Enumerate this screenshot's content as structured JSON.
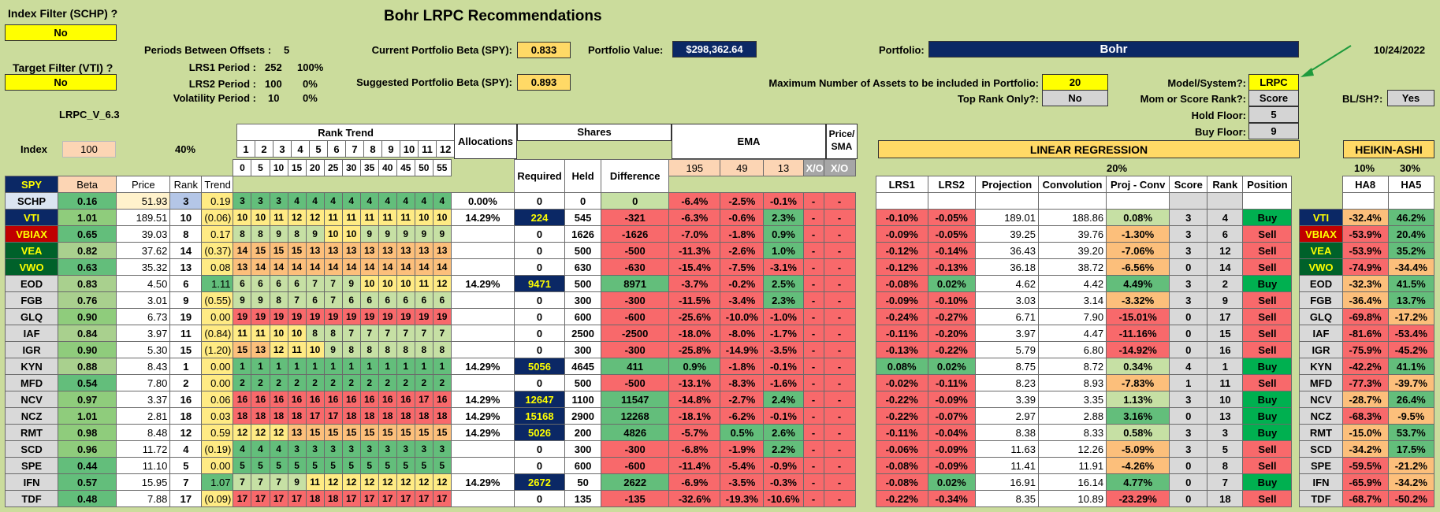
{
  "title": "Bohr LRPC Recommendations",
  "left": {
    "index_filter_label": "Index Filter (SCHP) ?",
    "index_filter_value": "No",
    "target_filter_label": "Target Filter (VTI) ?",
    "target_filter_value": "No",
    "version": "LRPC_V_6.3"
  },
  "periods": {
    "offsets_label": "Periods Between Offsets :",
    "offsets_value": "5",
    "lrs1_label": "LRS1 Period :",
    "lrs1_value": "252",
    "lrs1_pct": "100%",
    "lrs2_label": "LRS2 Period :",
    "lrs2_value": "100",
    "lrs2_pct": "0%",
    "vol_label": "Volatility Period :",
    "vol_value": "10",
    "vol_pct": "0%"
  },
  "beta": {
    "current_label": "Current Portfolio Beta (SPY):",
    "current_value": "0.833",
    "suggested_label": "Suggested Portfolio Beta (SPY):",
    "suggested_value": "0.893",
    "pv_label": "Portfolio Value:",
    "pv_value": "$298,362.64"
  },
  "portfolio": {
    "label": "Portfolio:",
    "value": "Bohr",
    "date": "10/24/2022",
    "max_assets_label": "Maximum Number of Assets to be included in Portfolio:",
    "max_assets_value": "20",
    "top_rank_label": "Top Rank Only?:",
    "top_rank_value": "No"
  },
  "settings": {
    "model_label": "Model/System?:",
    "model_value": "LRPC",
    "mom_label": "Mom or Score Rank?:",
    "mom_value": "Score",
    "hold_label": "Hold Floor:",
    "hold_value": "5",
    "buy_label": "Buy Floor:",
    "buy_value": "9",
    "blsh_label": "BL/SH?:",
    "blsh_value": "Yes"
  },
  "headers": {
    "index": "Index",
    "index_val": "100",
    "pct40": "40%",
    "rank_trend": "Rank Trend",
    "rank_nums": [
      "1",
      "2",
      "3",
      "4",
      "5",
      "6",
      "7",
      "8",
      "9",
      "10",
      "11",
      "12"
    ],
    "rank_offsets": [
      "0",
      "5",
      "10",
      "15",
      "20",
      "25",
      "30",
      "35",
      "40",
      "45",
      "50",
      "55"
    ],
    "allocations": "Allocations",
    "shares": "Shares",
    "ema": "EMA",
    "price_sma": "Price/ SMA",
    "linreg": "LINEAR REGRESSION",
    "heikin": "HEIKIN-ASHI",
    "pct20": "20%",
    "pct10": "10%",
    "pct30": "30%",
    "spy": "SPY",
    "beta": "Beta",
    "price": "Price",
    "rank": "Rank",
    "trend": "Trend",
    "required": "Required",
    "held": "Held",
    "difference": "Difference",
    "ema195": "195",
    "ema49": "49",
    "ema13": "13",
    "xo": "X/O",
    "lrs1": "LRS1",
    "lrs2": "LRS2",
    "projection": "Projection",
    "convolution": "Convolution",
    "projconv": "Proj - Conv",
    "score": "Score",
    "rank2": "Rank",
    "position": "Position",
    "ha8": "HA8",
    "ha5": "HA5"
  },
  "rows": [
    {
      "t": "SCHP",
      "beta": "0.16",
      "price": "51.93",
      "rank": "3",
      "trend": "0.19",
      "rt": [
        "3",
        "3",
        "3",
        "4",
        "4",
        "4",
        "4",
        "4",
        "4",
        "4",
        "4",
        "4"
      ],
      "alloc": "0.00%",
      "req": "0",
      "held": "0",
      "diff": "0",
      "e195": "-6.4%",
      "e49": "-2.5%",
      "e13": "-0.1%",
      "x1": "-",
      "x2": "-",
      "lrs1": "",
      "lrs2": "",
      "proj": "",
      "conv": "",
      "pc": "",
      "score": "",
      "rank2": "",
      "pos": "",
      "t2": "",
      "ha8": "",
      "ha5": ""
    },
    {
      "t": "VTI",
      "beta": "1.01",
      "price": "189.51",
      "rank": "10",
      "trend": "(0.06)",
      "rt": [
        "10",
        "10",
        "11",
        "12",
        "12",
        "11",
        "11",
        "11",
        "11",
        "11",
        "10",
        "10"
      ],
      "alloc": "14.29%",
      "req": "224",
      "held": "545",
      "diff": "-321",
      "e195": "-6.3%",
      "e49": "-0.6%",
      "e13": "2.3%",
      "x1": "-",
      "x2": "-",
      "lrs1": "-0.10%",
      "lrs2": "-0.05%",
      "proj": "189.01",
      "conv": "188.86",
      "pc": "0.08%",
      "score": "3",
      "rank2": "4",
      "pos": "Buy",
      "t2": "VTI",
      "ha8": "-32.4%",
      "ha5": "46.2%"
    },
    {
      "t": "VBIAX",
      "beta": "0.65",
      "price": "39.03",
      "rank": "8",
      "trend": "0.17",
      "rt": [
        "8",
        "8",
        "9",
        "8",
        "9",
        "10",
        "10",
        "9",
        "9",
        "9",
        "9",
        "9"
      ],
      "alloc": "",
      "req": "0",
      "held": "1626",
      "diff": "-1626",
      "e195": "-7.0%",
      "e49": "-1.8%",
      "e13": "0.9%",
      "x1": "-",
      "x2": "-",
      "lrs1": "-0.09%",
      "lrs2": "-0.05%",
      "proj": "39.25",
      "conv": "39.76",
      "pc": "-1.30%",
      "score": "3",
      "rank2": "6",
      "pos": "Sell",
      "t2": "VBIAX",
      "ha8": "-53.9%",
      "ha5": "20.4%"
    },
    {
      "t": "VEA",
      "beta": "0.82",
      "price": "37.62",
      "rank": "14",
      "trend": "(0.37)",
      "rt": [
        "14",
        "15",
        "15",
        "15",
        "13",
        "13",
        "13",
        "13",
        "13",
        "13",
        "13",
        "13"
      ],
      "alloc": "",
      "req": "0",
      "held": "500",
      "diff": "-500",
      "e195": "-11.3%",
      "e49": "-2.6%",
      "e13": "1.0%",
      "x1": "-",
      "x2": "-",
      "lrs1": "-0.12%",
      "lrs2": "-0.14%",
      "proj": "36.43",
      "conv": "39.20",
      "pc": "-7.06%",
      "score": "3",
      "rank2": "12",
      "pos": "Sell",
      "t2": "VEA",
      "ha8": "-53.9%",
      "ha5": "35.2%"
    },
    {
      "t": "VWO",
      "beta": "0.63",
      "price": "35.32",
      "rank": "13",
      "trend": "0.08",
      "rt": [
        "13",
        "14",
        "14",
        "14",
        "14",
        "14",
        "14",
        "14",
        "14",
        "14",
        "14",
        "14"
      ],
      "alloc": "",
      "req": "0",
      "held": "630",
      "diff": "-630",
      "e195": "-15.4%",
      "e49": "-7.5%",
      "e13": "-3.1%",
      "x1": "-",
      "x2": "-",
      "lrs1": "-0.12%",
      "lrs2": "-0.13%",
      "proj": "36.18",
      "conv": "38.72",
      "pc": "-6.56%",
      "score": "0",
      "rank2": "14",
      "pos": "Sell",
      "t2": "VWO",
      "ha8": "-74.9%",
      "ha5": "-34.4%"
    },
    {
      "t": "EOD",
      "beta": "0.83",
      "price": "4.50",
      "rank": "6",
      "trend": "1.11",
      "rt": [
        "6",
        "6",
        "6",
        "6",
        "7",
        "7",
        "9",
        "10",
        "10",
        "10",
        "11",
        "12"
      ],
      "alloc": "14.29%",
      "req": "9471",
      "held": "500",
      "diff": "8971",
      "e195": "-3.7%",
      "e49": "-0.2%",
      "e13": "2.5%",
      "x1": "-",
      "x2": "-",
      "lrs1": "-0.08%",
      "lrs2": "0.02%",
      "proj": "4.62",
      "conv": "4.42",
      "pc": "4.49%",
      "score": "3",
      "rank2": "2",
      "pos": "Buy",
      "t2": "EOD",
      "ha8": "-32.3%",
      "ha5": "41.5%"
    },
    {
      "t": "FGB",
      "beta": "0.76",
      "price": "3.01",
      "rank": "9",
      "trend": "(0.55)",
      "rt": [
        "9",
        "9",
        "8",
        "7",
        "6",
        "7",
        "6",
        "6",
        "6",
        "6",
        "6",
        "6"
      ],
      "alloc": "",
      "req": "0",
      "held": "300",
      "diff": "-300",
      "e195": "-11.5%",
      "e49": "-3.4%",
      "e13": "2.3%",
      "x1": "-",
      "x2": "-",
      "lrs1": "-0.09%",
      "lrs2": "-0.10%",
      "proj": "3.03",
      "conv": "3.14",
      "pc": "-3.32%",
      "score": "3",
      "rank2": "9",
      "pos": "Sell",
      "t2": "FGB",
      "ha8": "-36.4%",
      "ha5": "13.7%"
    },
    {
      "t": "GLQ",
      "beta": "0.90",
      "price": "6.73",
      "rank": "19",
      "trend": "0.00",
      "rt": [
        "19",
        "19",
        "19",
        "19",
        "19",
        "19",
        "19",
        "19",
        "19",
        "19",
        "19",
        "19"
      ],
      "alloc": "",
      "req": "0",
      "held": "600",
      "diff": "-600",
      "e195": "-25.6%",
      "e49": "-10.0%",
      "e13": "-1.0%",
      "x1": "-",
      "x2": "-",
      "lrs1": "-0.24%",
      "lrs2": "-0.27%",
      "proj": "6.71",
      "conv": "7.90",
      "pc": "-15.01%",
      "score": "0",
      "rank2": "17",
      "pos": "Sell",
      "t2": "GLQ",
      "ha8": "-69.8%",
      "ha5": "-17.2%"
    },
    {
      "t": "IAF",
      "beta": "0.84",
      "price": "3.97",
      "rank": "11",
      "trend": "(0.84)",
      "rt": [
        "11",
        "11",
        "10",
        "10",
        "8",
        "8",
        "7",
        "7",
        "7",
        "7",
        "7",
        "7"
      ],
      "alloc": "",
      "req": "0",
      "held": "2500",
      "diff": "-2500",
      "e195": "-18.0%",
      "e49": "-8.0%",
      "e13": "-1.7%",
      "x1": "-",
      "x2": "-",
      "lrs1": "-0.11%",
      "lrs2": "-0.20%",
      "proj": "3.97",
      "conv": "4.47",
      "pc": "-11.16%",
      "score": "0",
      "rank2": "15",
      "pos": "Sell",
      "t2": "IAF",
      "ha8": "-81.6%",
      "ha5": "-53.4%"
    },
    {
      "t": "IGR",
      "beta": "0.90",
      "price": "5.30",
      "rank": "15",
      "trend": "(1.20)",
      "rt": [
        "15",
        "13",
        "12",
        "11",
        "10",
        "9",
        "8",
        "8",
        "8",
        "8",
        "8",
        "8"
      ],
      "alloc": "",
      "req": "0",
      "held": "300",
      "diff": "-300",
      "e195": "-25.8%",
      "e49": "-14.9%",
      "e13": "-3.5%",
      "x1": "-",
      "x2": "-",
      "lrs1": "-0.13%",
      "lrs2": "-0.22%",
      "proj": "5.79",
      "conv": "6.80",
      "pc": "-14.92%",
      "score": "0",
      "rank2": "16",
      "pos": "Sell",
      "t2": "IGR",
      "ha8": "-75.9%",
      "ha5": "-45.2%"
    },
    {
      "t": "KYN",
      "beta": "0.88",
      "price": "8.43",
      "rank": "1",
      "trend": "0.00",
      "rt": [
        "1",
        "1",
        "1",
        "1",
        "1",
        "1",
        "1",
        "1",
        "1",
        "1",
        "1",
        "1"
      ],
      "alloc": "14.29%",
      "req": "5056",
      "held": "4645",
      "diff": "411",
      "e195": "0.9%",
      "e49": "-1.8%",
      "e13": "-0.1%",
      "x1": "-",
      "x2": "-",
      "lrs1": "0.08%",
      "lrs2": "0.02%",
      "proj": "8.75",
      "conv": "8.72",
      "pc": "0.34%",
      "score": "4",
      "rank2": "1",
      "pos": "Buy",
      "t2": "KYN",
      "ha8": "-42.2%",
      "ha5": "41.1%"
    },
    {
      "t": "MFD",
      "beta": "0.54",
      "price": "7.80",
      "rank": "2",
      "trend": "0.00",
      "rt": [
        "2",
        "2",
        "2",
        "2",
        "2",
        "2",
        "2",
        "2",
        "2",
        "2",
        "2",
        "2"
      ],
      "alloc": "",
      "req": "0",
      "held": "500",
      "diff": "-500",
      "e195": "-13.1%",
      "e49": "-8.3%",
      "e13": "-1.6%",
      "x1": "-",
      "x2": "-",
      "lrs1": "-0.02%",
      "lrs2": "-0.11%",
      "proj": "8.23",
      "conv": "8.93",
      "pc": "-7.83%",
      "score": "1",
      "rank2": "11",
      "pos": "Sell",
      "t2": "MFD",
      "ha8": "-77.3%",
      "ha5": "-39.7%"
    },
    {
      "t": "NCV",
      "beta": "0.97",
      "price": "3.37",
      "rank": "16",
      "trend": "0.06",
      "rt": [
        "16",
        "16",
        "16",
        "16",
        "16",
        "16",
        "16",
        "16",
        "16",
        "16",
        "17",
        "16"
      ],
      "alloc": "14.29%",
      "req": "12647",
      "held": "1100",
      "diff": "11547",
      "e195": "-14.8%",
      "e49": "-2.7%",
      "e13": "2.4%",
      "x1": "-",
      "x2": "-",
      "lrs1": "-0.22%",
      "lrs2": "-0.09%",
      "proj": "3.39",
      "conv": "3.35",
      "pc": "1.13%",
      "score": "3",
      "rank2": "10",
      "pos": "Buy",
      "t2": "NCV",
      "ha8": "-28.7%",
      "ha5": "26.4%"
    },
    {
      "t": "NCZ",
      "beta": "1.01",
      "price": "2.81",
      "rank": "18",
      "trend": "0.03",
      "rt": [
        "18",
        "18",
        "18",
        "18",
        "17",
        "17",
        "18",
        "18",
        "18",
        "18",
        "18",
        "18"
      ],
      "alloc": "14.29%",
      "req": "15168",
      "held": "2900",
      "diff": "12268",
      "e195": "-18.1%",
      "e49": "-6.2%",
      "e13": "-0.1%",
      "x1": "-",
      "x2": "-",
      "lrs1": "-0.22%",
      "lrs2": "-0.07%",
      "proj": "2.97",
      "conv": "2.88",
      "pc": "3.16%",
      "score": "0",
      "rank2": "13",
      "pos": "Buy",
      "t2": "NCZ",
      "ha8": "-68.3%",
      "ha5": "-9.5%"
    },
    {
      "t": "RMT",
      "beta": "0.98",
      "price": "8.48",
      "rank": "12",
      "trend": "0.59",
      "rt": [
        "12",
        "12",
        "12",
        "13",
        "15",
        "15",
        "15",
        "15",
        "15",
        "15",
        "15",
        "15"
      ],
      "alloc": "14.29%",
      "req": "5026",
      "held": "200",
      "diff": "4826",
      "e195": "-5.7%",
      "e49": "0.5%",
      "e13": "2.6%",
      "x1": "-",
      "x2": "-",
      "lrs1": "-0.11%",
      "lrs2": "-0.04%",
      "proj": "8.38",
      "conv": "8.33",
      "pc": "0.58%",
      "score": "3",
      "rank2": "3",
      "pos": "Buy",
      "t2": "RMT",
      "ha8": "-15.0%",
      "ha5": "53.7%"
    },
    {
      "t": "SCD",
      "beta": "0.96",
      "price": "11.72",
      "rank": "4",
      "trend": "(0.19)",
      "rt": [
        "4",
        "4",
        "4",
        "3",
        "3",
        "3",
        "3",
        "3",
        "3",
        "3",
        "3",
        "3"
      ],
      "alloc": "",
      "req": "0",
      "held": "300",
      "diff": "-300",
      "e195": "-6.8%",
      "e49": "-1.9%",
      "e13": "2.2%",
      "x1": "-",
      "x2": "-",
      "lrs1": "-0.06%",
      "lrs2": "-0.09%",
      "proj": "11.63",
      "conv": "12.26",
      "pc": "-5.09%",
      "score": "3",
      "rank2": "5",
      "pos": "Sell",
      "t2": "SCD",
      "ha8": "-34.2%",
      "ha5": "17.5%"
    },
    {
      "t": "SPE",
      "beta": "0.44",
      "price": "11.10",
      "rank": "5",
      "trend": "0.00",
      "rt": [
        "5",
        "5",
        "5",
        "5",
        "5",
        "5",
        "5",
        "5",
        "5",
        "5",
        "5",
        "5"
      ],
      "alloc": "",
      "req": "0",
      "held": "600",
      "diff": "-600",
      "e195": "-11.4%",
      "e49": "-5.4%",
      "e13": "-0.9%",
      "x1": "-",
      "x2": "-",
      "lrs1": "-0.08%",
      "lrs2": "-0.09%",
      "proj": "11.41",
      "conv": "11.91",
      "pc": "-4.26%",
      "score": "0",
      "rank2": "8",
      "pos": "Sell",
      "t2": "SPE",
      "ha8": "-59.5%",
      "ha5": "-21.2%"
    },
    {
      "t": "IFN",
      "beta": "0.57",
      "price": "15.95",
      "rank": "7",
      "trend": "1.07",
      "rt": [
        "7",
        "7",
        "7",
        "9",
        "11",
        "12",
        "12",
        "12",
        "12",
        "12",
        "12",
        "12"
      ],
      "alloc": "14.29%",
      "req": "2672",
      "held": "50",
      "diff": "2622",
      "e195": "-6.9%",
      "e49": "-3.5%",
      "e13": "-0.3%",
      "x1": "-",
      "x2": "-",
      "lrs1": "-0.08%",
      "lrs2": "0.02%",
      "proj": "16.91",
      "conv": "16.14",
      "pc": "4.77%",
      "score": "0",
      "rank2": "7",
      "pos": "Buy",
      "t2": "IFN",
      "ha8": "-65.9%",
      "ha5": "-34.2%"
    },
    {
      "t": "TDF",
      "beta": "0.48",
      "price": "7.88",
      "rank": "17",
      "trend": "(0.09)",
      "rt": [
        "17",
        "17",
        "17",
        "17",
        "18",
        "18",
        "17",
        "17",
        "17",
        "17",
        "17",
        "17"
      ],
      "alloc": "",
      "req": "0",
      "held": "135",
      "diff": "-135",
      "e195": "-32.6%",
      "e49": "-19.3%",
      "e13": "-10.6%",
      "x1": "-",
      "x2": "-",
      "lrs1": "-0.22%",
      "lrs2": "-0.34%",
      "proj": "8.35",
      "conv": "10.89",
      "pc": "-23.29%",
      "score": "0",
      "rank2": "18",
      "pos": "Sell",
      "t2": "TDF",
      "ha8": "-68.7%",
      "ha5": "-50.2%"
    }
  ],
  "colors": {
    "green": "#63be7b",
    "lightgreen": "#c6e0a4",
    "red": "#f8696b",
    "pink": "#f8a3a3",
    "yellow": "#ffeb84",
    "navy": "#0b2865",
    "bg": "#cbdc9c"
  }
}
